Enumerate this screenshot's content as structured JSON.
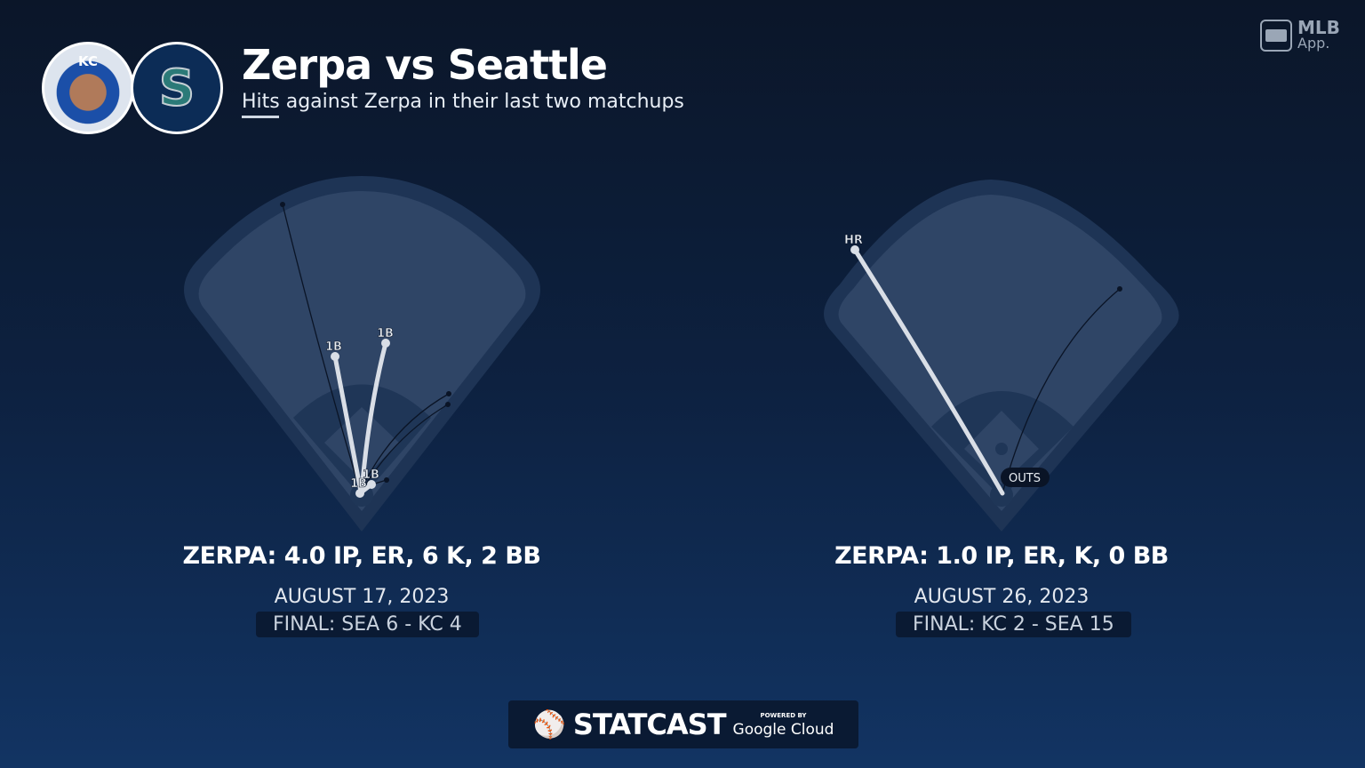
{
  "header": {
    "title": "Zerpa vs Seattle",
    "subtitle": "Hits against Zerpa in their last two matchups",
    "pitcher_logo": "KC",
    "team_logo": "S"
  },
  "brand": {
    "mlb_app_line1": "MLB",
    "mlb_app_line2": "App.",
    "statcast": "STATCAST",
    "powered_by": "POWERED BY",
    "google_cloud": "Google Cloud"
  },
  "games": [
    {
      "stat_line": "ZERPA: 4.0 IP, ER, 6 K, 2 BB",
      "date": "AUGUST 17, 2023",
      "final": "FINAL: SEA 6 - KC 4",
      "hit_labels": [
        "1B",
        "1B",
        "1B",
        "1B"
      ]
    },
    {
      "stat_line": "ZERPA: 1.0 IP, ER, K, 0 BB",
      "date": "AUGUST 26, 2023",
      "final": "FINAL: KC 2 - SEA 15",
      "hit_labels": [
        "HR"
      ],
      "outs_label": "OUTS"
    }
  ],
  "colors": {
    "field": "#2f4566",
    "field_outer": "#1e3455",
    "infield": "#1f3657",
    "hit_line": "#d9dee6",
    "out_line": "#0a1426"
  }
}
